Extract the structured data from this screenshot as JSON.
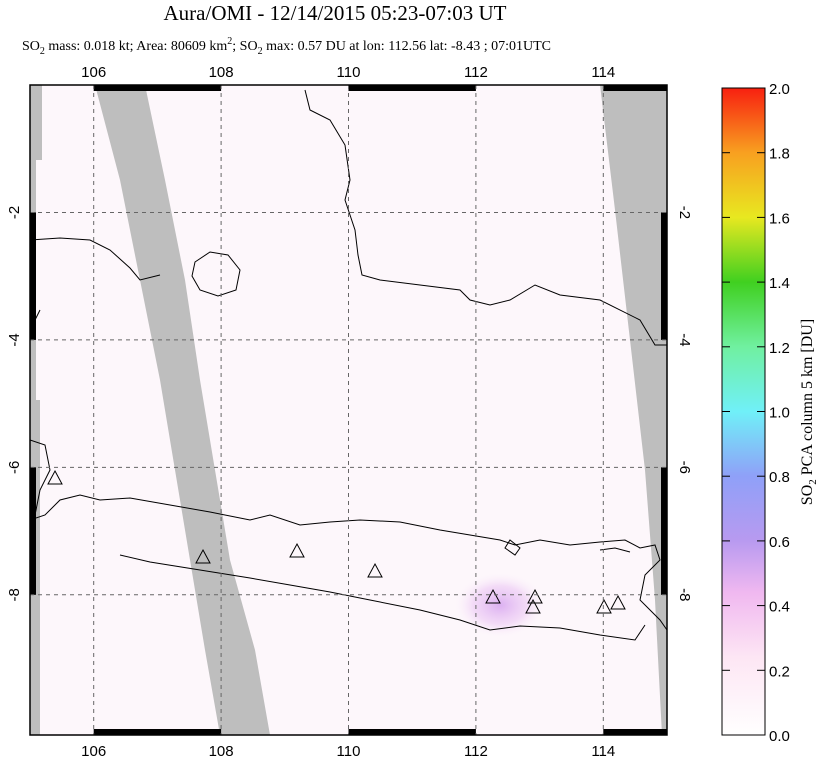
{
  "title": "Aura/OMI - 12/14/2015 05:23-07:03 UT",
  "subtitle": [
    "SO",
    "2",
    " mass: 0.018 kt; Area: 80609 km",
    "2",
    "; SO",
    "2",
    " max: 0.57 DU at lon: 112.56 lat: -8.43 ; 07:01UTC"
  ],
  "map": {
    "lonlim": [
      105,
      115
    ],
    "latlim": [
      -10.2,
      0
    ],
    "lonticks": [
      106,
      108,
      110,
      112,
      114
    ],
    "latticks": [
      -2,
      -4,
      -6,
      -8
    ]
  },
  "colorbar": {
    "title": [
      "SO",
      "2",
      " PCA column 5 km [DU]"
    ],
    "lim": [
      0,
      2
    ],
    "ticks": [
      {
        "value": 0,
        "label": "0.0"
      },
      {
        "value": 0.2,
        "label": "0.2"
      },
      {
        "value": 0.4,
        "label": "0.4"
      },
      {
        "value": 0.6,
        "label": "0.6"
      },
      {
        "value": 0.8,
        "label": "0.8"
      },
      {
        "value": 1,
        "label": "1.0"
      },
      {
        "value": 1.2,
        "label": "1.2"
      },
      {
        "value": 1.4,
        "label": "1.4"
      },
      {
        "value": 1.6,
        "label": "1.6"
      },
      {
        "value": 1.8,
        "label": "1.8"
      },
      {
        "value": 2,
        "label": "2.0"
      }
    ]
  }
}
